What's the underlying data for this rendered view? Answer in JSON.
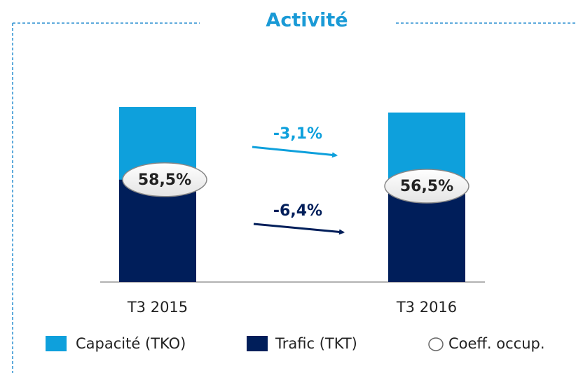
{
  "chart_data": {
    "type": "bar",
    "title": "Activité",
    "categories": [
      "T3 2015",
      "T3 2016"
    ],
    "overlay": true,
    "ylim": [
      0,
      100
    ],
    "series": [
      {
        "name": "Capacité (TKO)",
        "color": "#0ea0dc",
        "values": [
          100,
          96.9
        ]
      },
      {
        "name": "Trafic (TKT)",
        "color": "#001e5a",
        "values": [
          58.5,
          54.8
        ]
      }
    ],
    "load_factor": {
      "name": "Coeff. occup.",
      "values": [
        58.5,
        56.5
      ],
      "value_labels": [
        "58,5%",
        "56,5%"
      ]
    },
    "annotations": [
      {
        "text": "-3,1%",
        "color": "#0ea0dc"
      },
      {
        "text": "-6,4%",
        "color": "#001e5a"
      }
    ]
  }
}
